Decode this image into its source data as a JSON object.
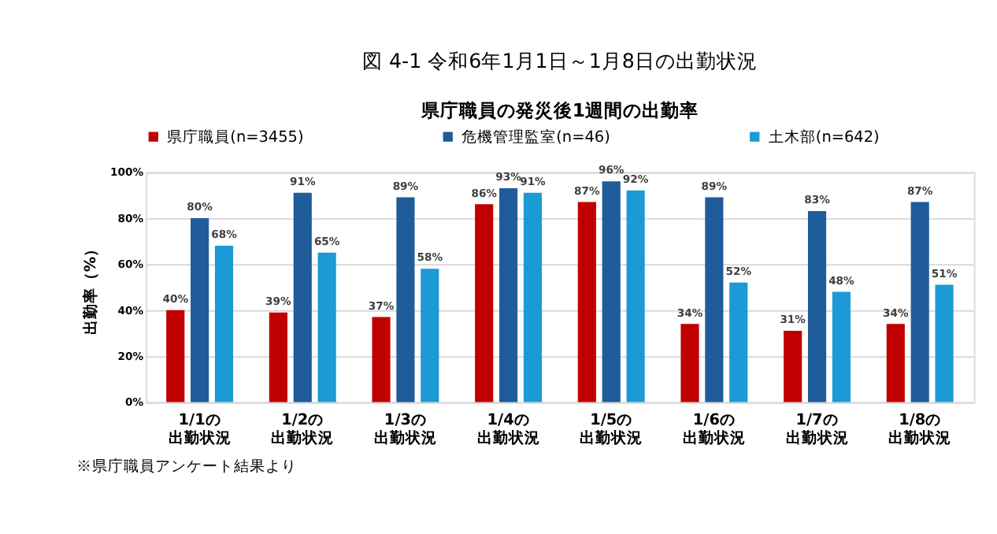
{
  "chart_data": {
    "type": "bar",
    "title": "図 4-1  令和6年1月1日～1月8日の出勤状況",
    "subtitle": "県庁職員の発災後1週間の出勤率",
    "ylabel": "出勤率（%）",
    "categories": [
      "1/1の出勤状況",
      "1/2の出勤状況",
      "1/3の出勤状況",
      "1/4の出勤状況",
      "1/5の出勤状況",
      "1/6の出勤状況",
      "1/7の出勤状況",
      "1/8の出勤状況"
    ],
    "series": [
      {
        "name": "県庁職員(n=3455)",
        "color": "#c00000",
        "values": [
          40,
          39,
          37,
          86,
          87,
          34,
          31,
          34
        ],
        "value_labels": [
          "40%",
          "39%",
          "37%",
          "86%",
          "87%",
          "34%",
          "31%",
          "34%"
        ]
      },
      {
        "name": "危機管理監室(n=46)",
        "color": "#1f5c99",
        "values": [
          80,
          91,
          89,
          93,
          96,
          89,
          83,
          87
        ],
        "value_labels": [
          "80%",
          "91%",
          "89%",
          "93%",
          "96%",
          "89%",
          "83%",
          "87%"
        ]
      },
      {
        "name": "土木部(n=642)",
        "color": "#1b9ad6",
        "values": [
          68,
          65,
          58,
          91,
          92,
          52,
          48,
          51
        ],
        "value_labels": [
          "68%",
          "65%",
          "58%",
          "91%",
          "92%",
          "52%",
          "48%",
          "51%"
        ]
      }
    ],
    "ylim": [
      0,
      100
    ],
    "yticks": [
      {
        "value": 0,
        "label": "0%"
      },
      {
        "value": 20,
        "label": "20%"
      },
      {
        "value": 40,
        "label": "40%"
      },
      {
        "value": 60,
        "label": "60%"
      },
      {
        "value": 80,
        "label": "80%"
      },
      {
        "value": 100,
        "label": "100%"
      }
    ],
    "grid": "y",
    "legend": "top",
    "annotations": [
      "※県庁職員アンケート結果より"
    ]
  }
}
